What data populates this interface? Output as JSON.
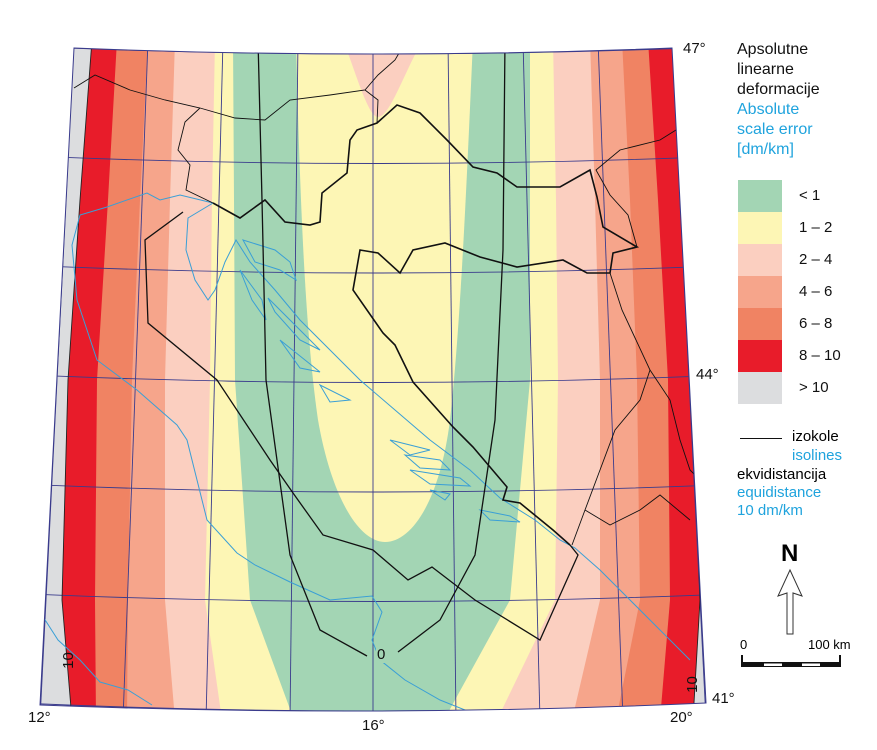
{
  "map": {
    "lat_labels": {
      "top": "47°",
      "middle": "44°",
      "bottom": "41°"
    },
    "lon_labels": {
      "left": "12°",
      "center": "16°",
      "right": "20°"
    },
    "isoline_labels": {
      "zero": "0",
      "left": "10",
      "right": "10"
    }
  },
  "legend": {
    "title_hr": [
      "Apsolutne",
      "linearne",
      "deformacije"
    ],
    "title_en": [
      "Absolute",
      "scale error",
      "[dm/km]"
    ],
    "classes": [
      {
        "label": "< 1",
        "color": "#a3d5b4"
      },
      {
        "label": "1 – 2",
        "color": "#fdf6b5"
      },
      {
        "label": "2 – 4",
        "color": "#fbcfc0"
      },
      {
        "label": "4 – 6",
        "color": "#f6a58b"
      },
      {
        "label": "6 – 8",
        "color": "#f08363"
      },
      {
        "label": "8 – 10",
        "color": "#e81c2a"
      },
      {
        "label": "> 10",
        "color": "#dcdddf"
      }
    ],
    "isolines_hr": "izokole",
    "isolines_en": "isolines",
    "equidistance_hr": "ekvidistancija",
    "equidistance_en": "equidistance",
    "equidistance_value": "10 dm/km",
    "north": "N",
    "scale": {
      "start": "0",
      "end": "100 km"
    }
  }
}
